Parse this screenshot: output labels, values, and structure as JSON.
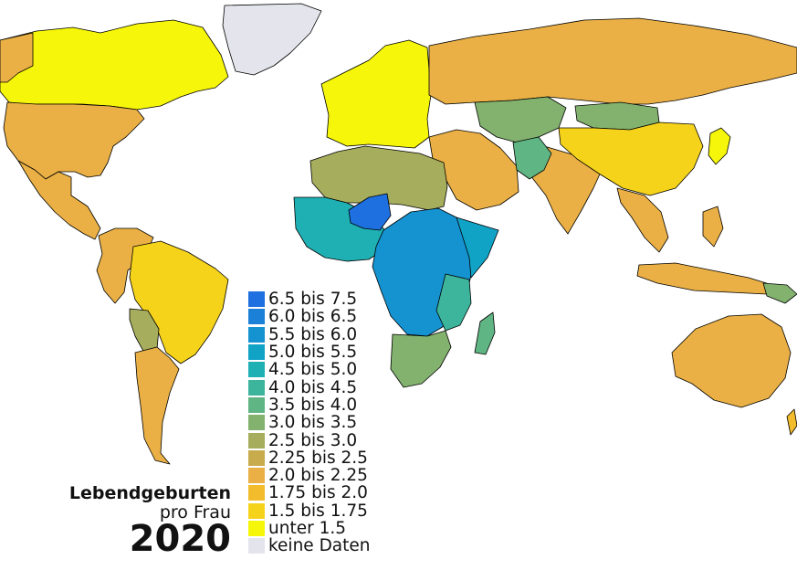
{
  "title": {
    "line1": "Lebendgeburten",
    "line2": "pro Frau",
    "year": "2020"
  },
  "legend": [
    {
      "label": "6.5 bis 7.5",
      "color": "#1e6fe0"
    },
    {
      "label": "6.0 bis 6.5",
      "color": "#1a80d8"
    },
    {
      "label": "5.5 bis 6.0",
      "color": "#1592d0"
    },
    {
      "label": "5.0 bis 5.5",
      "color": "#11a3c6"
    },
    {
      "label": "4.5 bis 5.0",
      "color": "#1fb0b4"
    },
    {
      "label": "4.0 bis 4.5",
      "color": "#3cb59c"
    },
    {
      "label": "3.5 bis 4.0",
      "color": "#5fb583"
    },
    {
      "label": "3.0 bis 3.5",
      "color": "#82b26e"
    },
    {
      "label": "2.5 bis 3.0",
      "color": "#a6ad5c"
    },
    {
      "label": "2.25 bis 2.5",
      "color": "#c8ab4d"
    },
    {
      "label": "2.0 bis 2.25",
      "color": "#eab045"
    },
    {
      "label": "1.75 bis 2.0",
      "color": "#f2bc2c"
    },
    {
      "label": "1.5 bis 1.75",
      "color": "#f6d31b"
    },
    {
      "label": "unter 1.5",
      "color": "#f6f60a"
    },
    {
      "label": "keine Daten",
      "color": "#e4e5ec"
    }
  ]
}
